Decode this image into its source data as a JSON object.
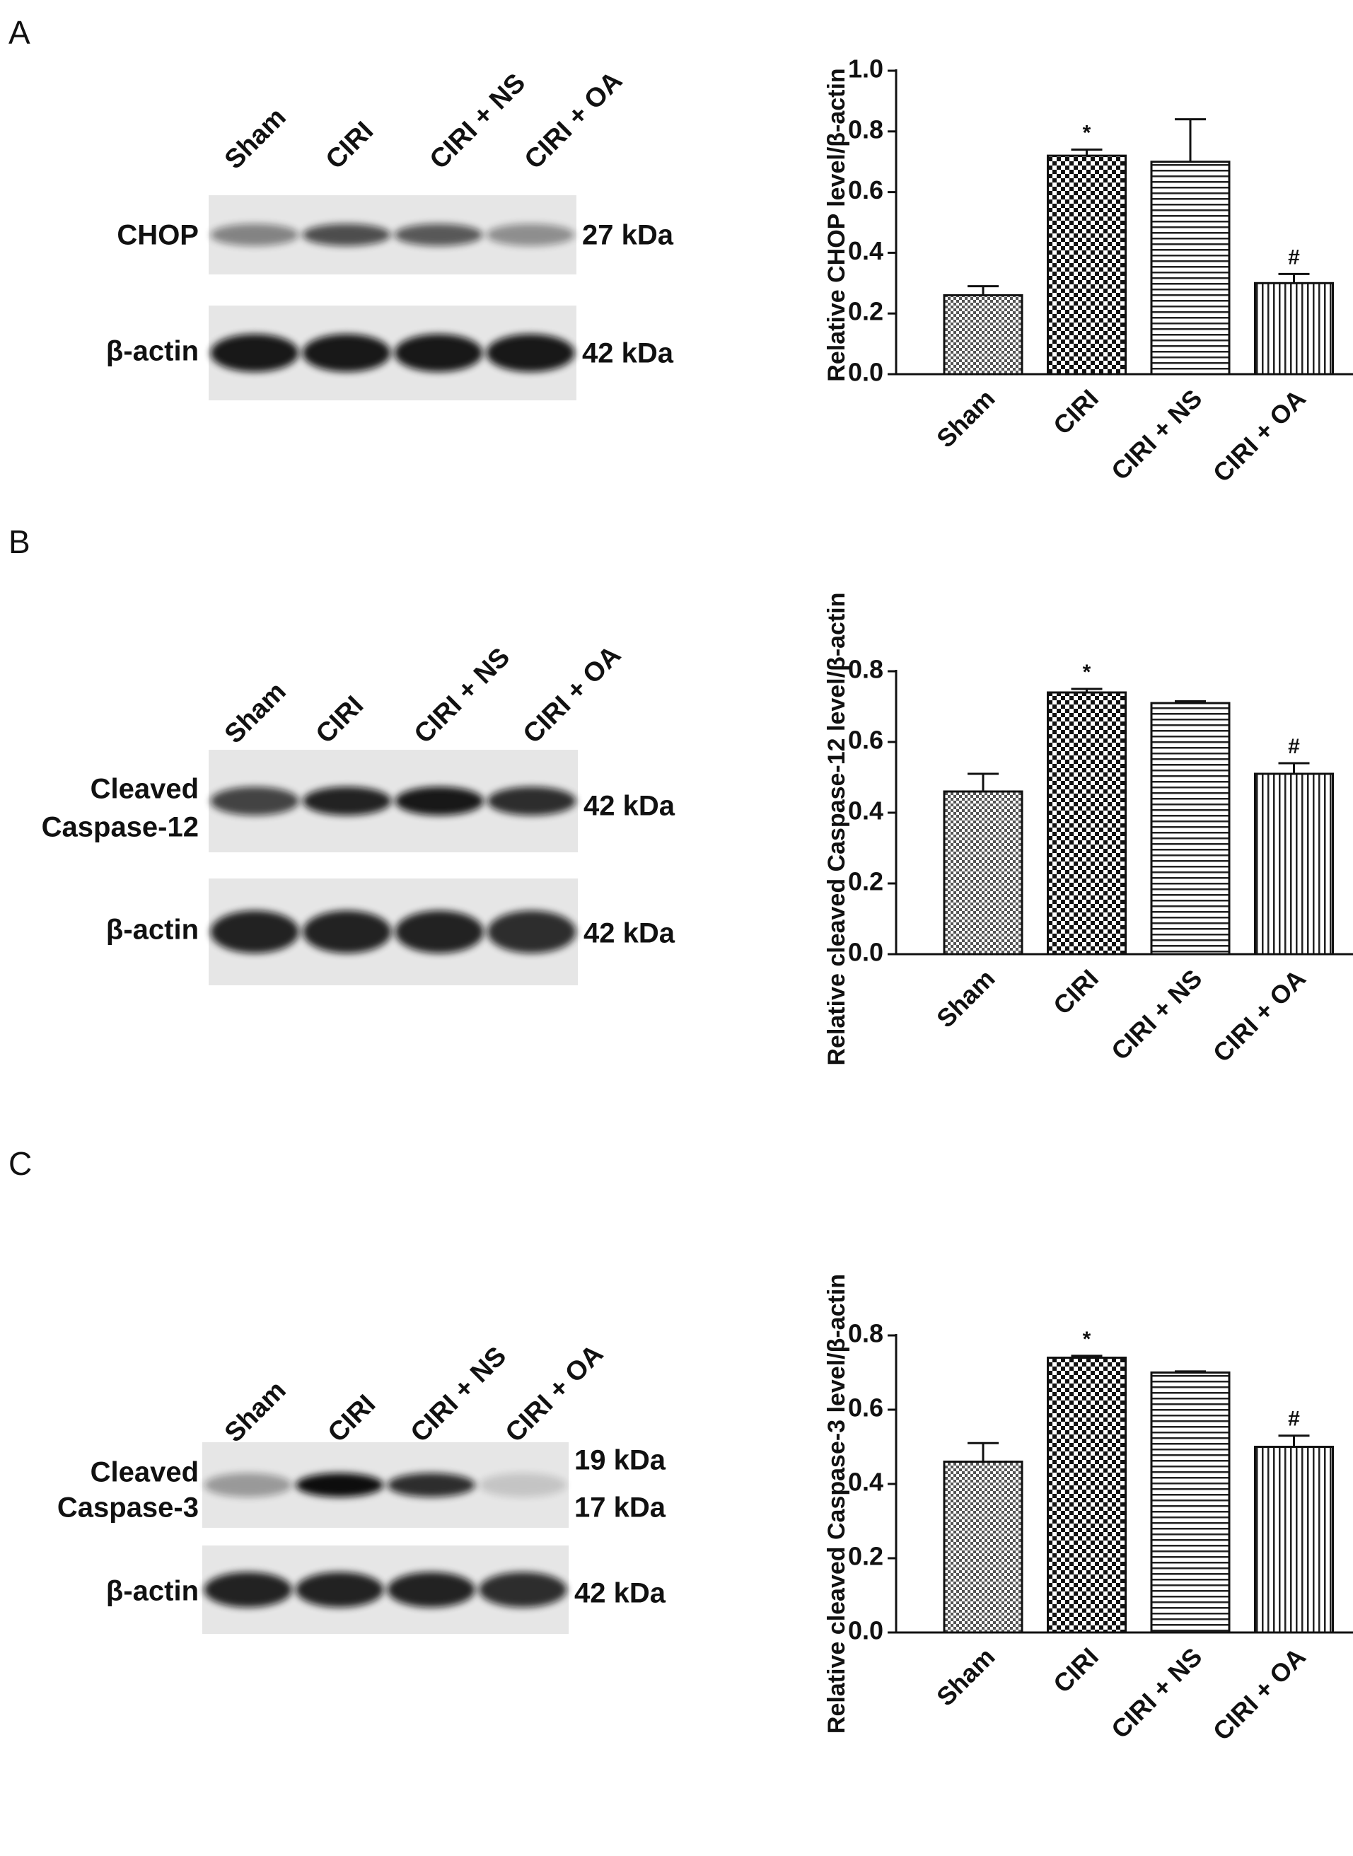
{
  "panel_labels": [
    "A",
    "B",
    "C"
  ],
  "blots": [
    {
      "lanes": [
        "Sham",
        "CIRI",
        "CIRI + NS",
        "CIRI + OA"
      ],
      "rows": [
        {
          "label": [
            "CHOP"
          ],
          "kda": [
            "27 kDa"
          ]
        },
        {
          "label": [
            "β-actin"
          ],
          "kda": [
            "42 kDa"
          ]
        }
      ]
    },
    {
      "lanes": [
        "Sham",
        "CIRI",
        "CIRI + NS",
        "CIRI + OA"
      ],
      "rows": [
        {
          "label": [
            "Cleaved",
            "Caspase-12"
          ],
          "kda": [
            "42 kDa"
          ]
        },
        {
          "label": [
            "β-actin"
          ],
          "kda": [
            "42 kDa"
          ]
        }
      ]
    },
    {
      "lanes": [
        "Sham",
        "CIRI",
        "CIRI + NS",
        "CIRI + OA"
      ],
      "rows": [
        {
          "label": [
            "Cleaved",
            "Caspase-3"
          ],
          "kda": [
            "19 kDa",
            "17 kDa"
          ]
        },
        {
          "label": [
            "β-actin"
          ],
          "kda": [
            "42 kDa"
          ]
        }
      ]
    }
  ],
  "chart_data": [
    {
      "type": "bar",
      "y_label": "Relative CHOP level/β-actin",
      "categories": [
        "Sham",
        "CIRI",
        "CIRI + NS",
        "CIRI + OA"
      ],
      "values": [
        0.26,
        0.72,
        0.7,
        0.3
      ],
      "errors": [
        0.03,
        0.02,
        0.14,
        0.03
      ],
      "markers": [
        null,
        "*",
        null,
        "#"
      ],
      "patterns": [
        "fine-check",
        "check",
        "horizontal",
        "vertical"
      ],
      "ylim": [
        0,
        1.0
      ],
      "yticks": [
        {
          "value": 0,
          "label": "0.0"
        },
        0.2,
        0.4,
        0.6,
        0.8,
        {
          "value": 1.0,
          "label": "1.0"
        }
      ]
    },
    {
      "type": "bar",
      "y_label": "Relative cleaved Caspase-12 level/β-actin",
      "categories": [
        "Sham",
        "CIRI",
        "CIRI + NS",
        "CIRI + OA"
      ],
      "values": [
        0.46,
        0.74,
        0.71,
        0.51
      ],
      "errors": [
        0.05,
        0.01,
        0.005,
        0.03
      ],
      "markers": [
        null,
        "*",
        null,
        "#"
      ],
      "patterns": [
        "fine-check",
        "check",
        "horizontal",
        "vertical"
      ],
      "ylim": [
        0,
        0.8
      ],
      "yticks": [
        {
          "value": 0,
          "label": "0.0"
        },
        0.2,
        0.4,
        0.6,
        0.8
      ]
    },
    {
      "type": "bar",
      "y_label": "Relative cleaved Caspase-3 level/β-actin",
      "categories": [
        "Sham",
        "CIRI",
        "CIRI + NS",
        "CIRI + OA"
      ],
      "values": [
        0.46,
        0.74,
        0.7,
        0.5
      ],
      "errors": [
        0.05,
        0.005,
        0.003,
        0.03
      ],
      "markers": [
        null,
        "*",
        null,
        "#"
      ],
      "patterns": [
        "fine-check",
        "check",
        "horizontal",
        "vertical"
      ],
      "ylim": [
        0,
        0.8
      ],
      "yticks": [
        {
          "value": 0,
          "label": "0.0"
        },
        0.2,
        0.4,
        0.6,
        0.8
      ]
    }
  ]
}
